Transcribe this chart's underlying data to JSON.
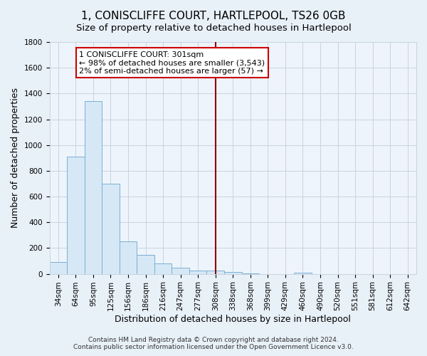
{
  "title": "1, CONISCLIFFE COURT, HARTLEPOOL, TS26 0GB",
  "subtitle": "Size of property relative to detached houses in Hartlepool",
  "xlabel": "Distribution of detached houses by size in Hartlepool",
  "ylabel": "Number of detached properties",
  "categories": [
    "34sqm",
    "64sqm",
    "95sqm",
    "125sqm",
    "156sqm",
    "186sqm",
    "216sqm",
    "247sqm",
    "277sqm",
    "308sqm",
    "338sqm",
    "368sqm",
    "399sqm",
    "429sqm",
    "460sqm",
    "490sqm",
    "520sqm",
    "551sqm",
    "581sqm",
    "612sqm",
    "642sqm"
  ],
  "values": [
    90,
    910,
    1340,
    700,
    250,
    145,
    80,
    50,
    25,
    25,
    15,
    5,
    0,
    0,
    10,
    0,
    0,
    0,
    0,
    0,
    0
  ],
  "bar_color": "#d6e8f5",
  "bar_edge_color": "#7ab0d4",
  "vline_x_index": 9,
  "vline_color": "#8b0000",
  "annotation_line1": "1 CONISCLIFFE COURT: 301sqm",
  "annotation_line2": "← 98% of detached houses are smaller (3,543)",
  "annotation_line3": "2% of semi-detached houses are larger (57) →",
  "annotation_box_color": "white",
  "annotation_box_edge_color": "#cc0000",
  "ylim": [
    0,
    1800
  ],
  "yticks": [
    0,
    200,
    400,
    600,
    800,
    1000,
    1200,
    1400,
    1600,
    1800
  ],
  "footer1": "Contains HM Land Registry data © Crown copyright and database right 2024.",
  "footer2": "Contains public sector information licensed under the Open Government Licence v3.0.",
  "bg_color": "#e8f0f8",
  "plot_bg_color": "#eef4fb",
  "grid_color": "#c8d4e0",
  "title_fontsize": 11,
  "subtitle_fontsize": 9.5,
  "label_fontsize": 9,
  "tick_fontsize": 7.5,
  "annot_fontsize": 8,
  "footer_fontsize": 6.5
}
